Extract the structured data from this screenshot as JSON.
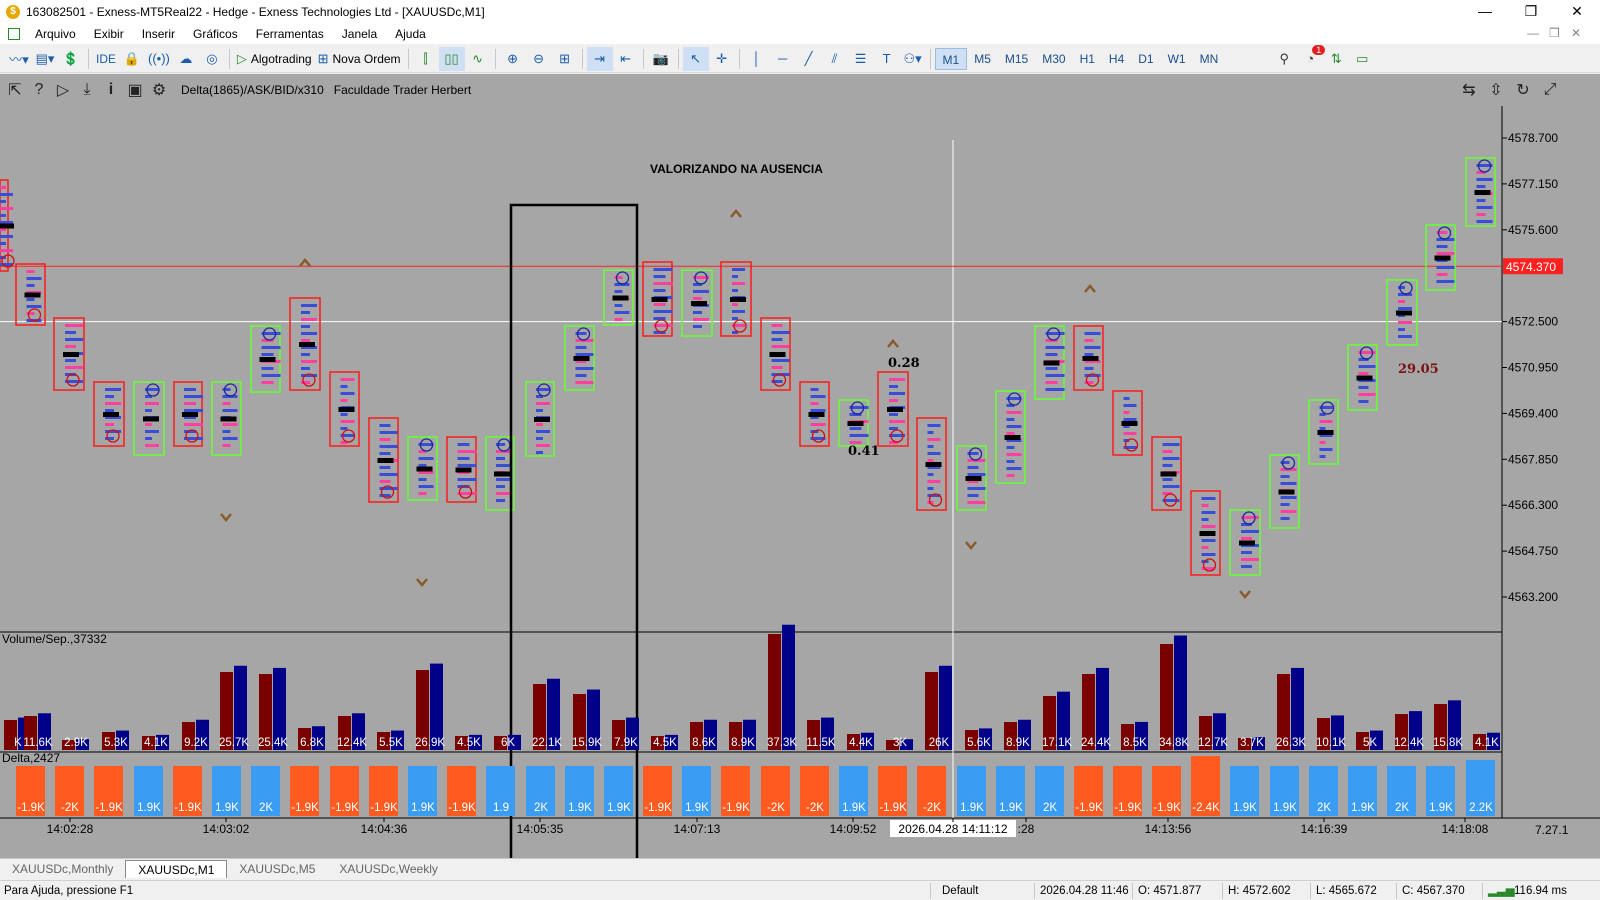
{
  "window": {
    "title": "163082501 - Exness-MT5Real22 - Hedge - Exness Technologies Ltd - [XAUUSDc,M1]",
    "controls": [
      "—",
      "❐",
      "✕"
    ]
  },
  "menu": [
    "Arquivo",
    "Exibir",
    "Inserir",
    "Gráficos",
    "Ferramentas",
    "Janela",
    "Ajuda"
  ],
  "toolbar": {
    "ide_label": "IDE",
    "algotrading_label": "Algotrading",
    "new_order_label": "Nova Ordem",
    "timeframes": [
      "M1",
      "M5",
      "M15",
      "M30",
      "H1",
      "H4",
      "D1",
      "W1",
      "MN"
    ],
    "active_timeframe": "M1",
    "notification_count": "1"
  },
  "chart_toolbar": {
    "indicator_label": "Delta(1865)/ASK/BID/x310",
    "author_label": "Faculdade Trader Herbert"
  },
  "chart": {
    "annotation": "VALORIZANDO NA AUSENCIA",
    "price_labels": [
      "4578.700",
      "4577.150",
      "4575.600",
      "4572.500",
      "4570.950",
      "4569.400",
      "4567.850",
      "4566.300",
      "4564.750",
      "4563.200"
    ],
    "current_price": "4574.370",
    "current_price_value": 4574.37,
    "crosshair_price_value": 4572.5,
    "value_labels": [
      "0.28",
      "0.41",
      "29.05"
    ],
    "volume_panel_label": "Volume/Sep.,37332",
    "delta_panel_label": "Delta,2427",
    "volume_values": [
      "K",
      "11.6K",
      "2.9K",
      "5.3K",
      "4.1K",
      "9.2K",
      "25.7K",
      "25.4K",
      "6.8K",
      "12.4K",
      "5.5K",
      "26.9K",
      "4.5K",
      "6K",
      "22.1K",
      "15.9K",
      "7.9K",
      "4.5K",
      "8.6K",
      "8.9K",
      "37.3K",
      "11.5K",
      "4.4K",
      "3K",
      "26K",
      "5.6K",
      "8.9K",
      "17.1K",
      "24.4K",
      "8.5K",
      "34.8K",
      "12.7K",
      "3.7K",
      "26.3K",
      "10.1K",
      "5K",
      "12.4K",
      "15.8K",
      "4.1K"
    ],
    "delta_values": [
      "-1.9K",
      "-2K",
      "-1.9K",
      "1.9K",
      "-1.9K",
      "1.9K",
      "2K",
      "-1.9K",
      "-1.9K",
      "-1.9K",
      "1.9K",
      "-1.9K",
      "1.9",
      "2K",
      "1.9K",
      "1.9K",
      "-1.9K",
      "1.9K",
      "-1.9K",
      "-2K",
      "-2K",
      "1.9K",
      "-1.9K",
      "-2K",
      "1.9K",
      "1.9K",
      "2K",
      "-1.9K",
      "-1.9K",
      "-1.9K",
      "-2.4K",
      "1.9K",
      "1.9K",
      "2K",
      "1.9K",
      "2K",
      "1.9K",
      "2.2K"
    ],
    "time_labels": [
      "14:02:28",
      "14:03:02",
      "14:04:36",
      "14:05:35",
      "14:07:13",
      "14:09:52",
      "2026.04.28 14:11:12",
      ":28",
      "14:13:56",
      "14:16:39",
      "14:18:08"
    ],
    "version_label": "7.27.1"
  },
  "tabs": [
    "XAUUSDc,Monthly",
    "XAUUSDc,M1",
    "XAUUSDc,M5",
    "XAUUSDc,Weekly"
  ],
  "active_tab": "XAUUSDc,M1",
  "status": {
    "help": "Para Ajuda, pressione F1",
    "profile": "Default",
    "datetime": "2026.04.28 11:46",
    "open": "O: 4571.877",
    "high": "H: 4572.602",
    "low": "L: 4565.672",
    "close": "C: 4567.370",
    "ping": "116.94 ms"
  },
  "colors": {
    "chart_bg": "#a6a6a6",
    "bull_box": "#66ff33",
    "bear_box": "#ff1a1a",
    "price_line": "#ff2020",
    "price_tag": "#ff2020",
    "vol_bear": "#7a0000",
    "vol_bull": "#000088",
    "delta_neg": "#ff5a1f",
    "delta_pos": "#3a9cf2",
    "arrow": "#8b5a2b"
  }
}
